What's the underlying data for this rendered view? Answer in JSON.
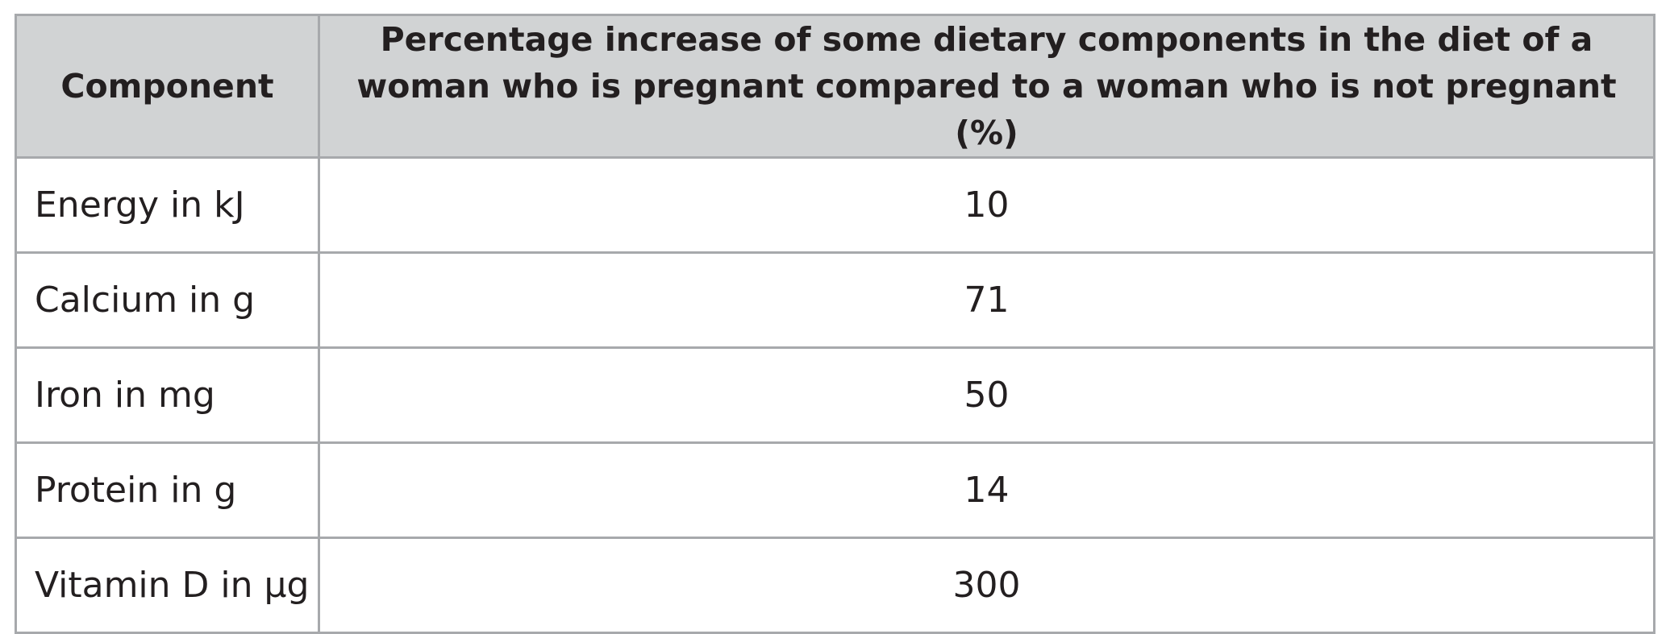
{
  "table": {
    "headers": {
      "component": "Component",
      "increase": "Percentage increase of some dietary components in the diet of a woman who is pregnant compared to a woman who is not pregnant (%)"
    },
    "rows": [
      {
        "component": "Energy in kJ",
        "value": "10"
      },
      {
        "component": "Calcium in g",
        "value": "71"
      },
      {
        "component": "Iron in mg",
        "value": "50"
      },
      {
        "component": "Protein in g",
        "value": "14"
      },
      {
        "component": "Vitamin D in µg",
        "value": "300"
      }
    ]
  }
}
